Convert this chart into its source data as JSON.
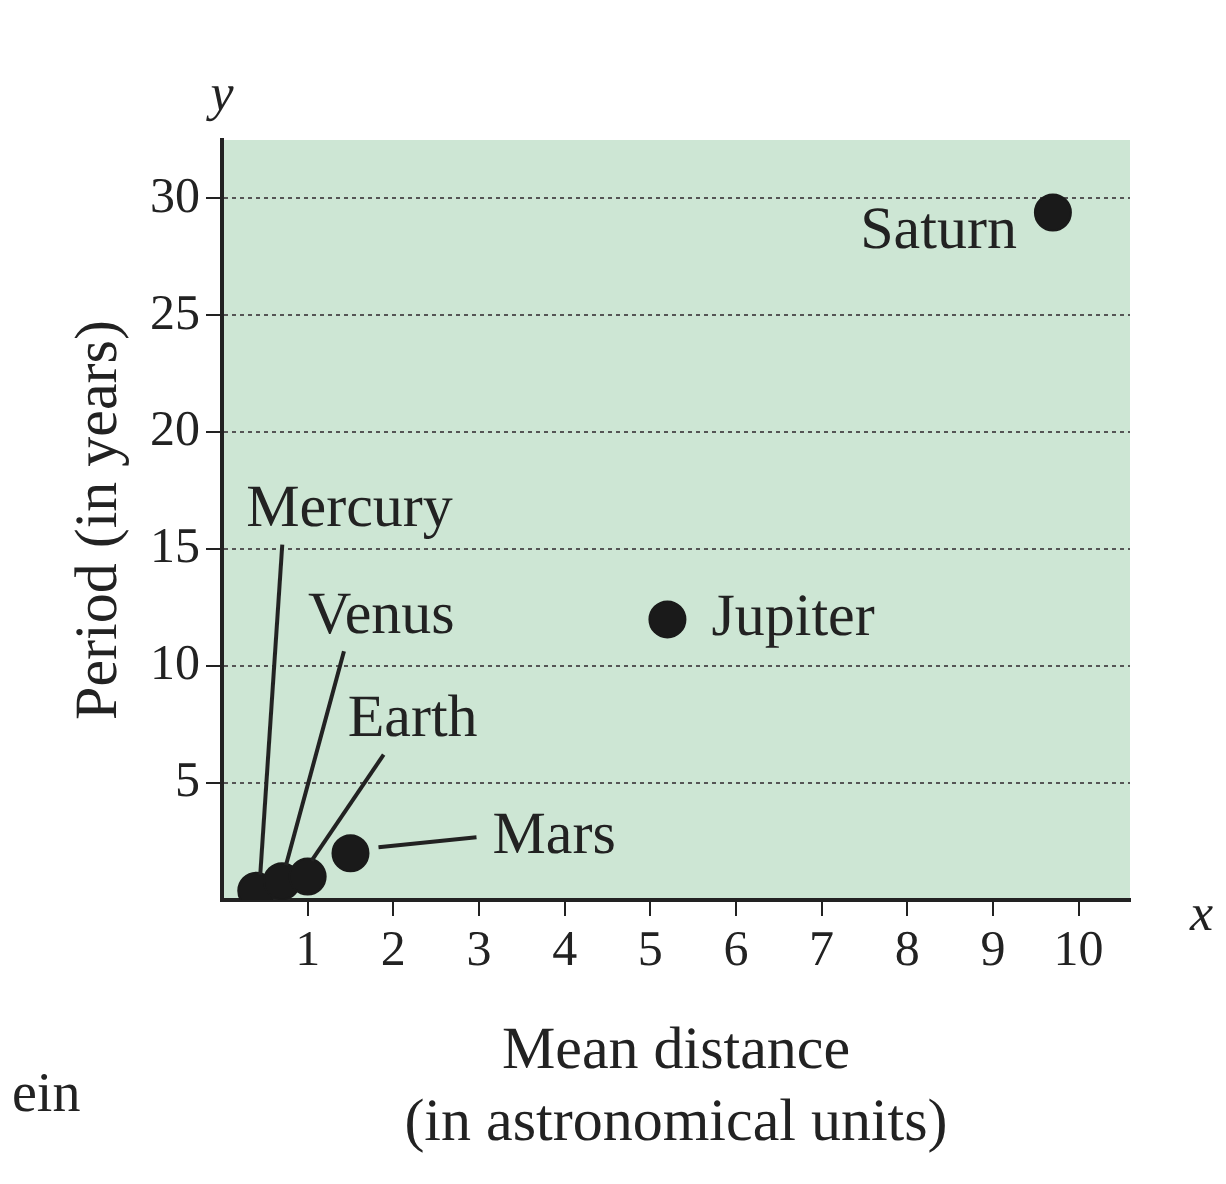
{
  "chart_data": {
    "type": "scatter",
    "xlabel": "Mean distance\n(in astronomical units)",
    "ylabel": "Period (in years)",
    "x": [
      0.4,
      0.7,
      1,
      1.5,
      5.2,
      9.7
    ],
    "series": [
      {
        "color": "#1a1a1a",
        "values": [
          0.4,
          0.8,
          1,
          2,
          12,
          29.4
        ]
      }
    ],
    "xlim": [
      0,
      10.6
    ],
    "xticks": [
      1,
      2,
      3,
      4,
      5,
      6,
      7,
      8,
      9,
      10
    ],
    "ylim": [
      0,
      32.5
    ],
    "yticks": [
      5,
      10,
      15,
      20,
      25,
      30
    ],
    "grid": "y",
    "marker": "circle",
    "legend": false,
    "annotations": [
      "y",
      "x",
      "ein",
      {
        "text": "Mercury",
        "x": 0.4,
        "y": 0.4
      },
      {
        "text": "Venus",
        "x": 0.7,
        "y": 0.8
      },
      {
        "text": "Earth",
        "x": 1,
        "y": 1
      },
      {
        "text": "Mars",
        "x": 1.5,
        "y": 2
      },
      {
        "text": "Jupiter",
        "x": 5.2,
        "y": 12
      },
      {
        "text": "Saturn",
        "x": 9.7,
        "y": 29.4
      }
    ]
  }
}
